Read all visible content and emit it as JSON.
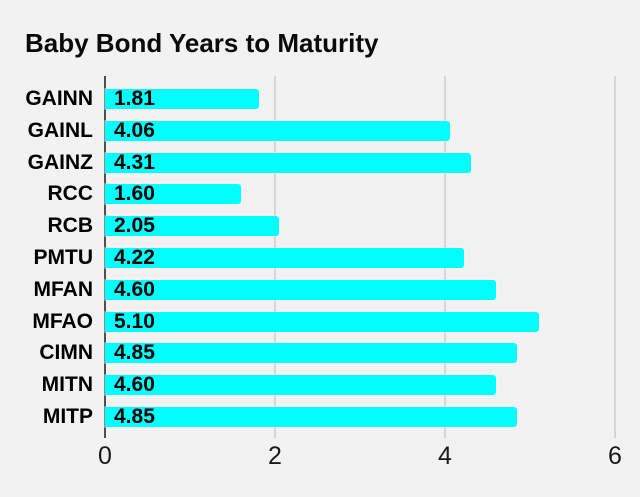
{
  "title": "Baby Bond Years to Maturity",
  "chart_data": {
    "type": "bar",
    "orientation": "horizontal",
    "title": "Baby Bond Years to Maturity",
    "categories": [
      "GAINN",
      "GAINL",
      "GAINZ",
      "RCC",
      "RCB",
      "PMTU",
      "MFAN",
      "MFAO",
      "CIMN",
      "MITN",
      "MITP"
    ],
    "values": [
      1.81,
      4.06,
      4.31,
      1.6,
      2.05,
      4.22,
      4.6,
      5.1,
      4.85,
      4.6,
      4.85
    ],
    "value_labels": [
      "1.81",
      "4.06",
      "4.31",
      "1.60",
      "2.05",
      "4.22",
      "4.60",
      "5.10",
      "4.85",
      "4.60",
      "4.85"
    ],
    "xlabel": "",
    "ylabel": "",
    "xlim": [
      0,
      6
    ],
    "x_ticks": [
      0,
      2,
      4,
      6
    ],
    "x_tick_labels": [
      "0",
      "2",
      "4",
      "6"
    ],
    "grid": "vertical gridlines at x ticks",
    "legend": false,
    "value_label_position": "inside-left",
    "colors": {
      "bar": "#00ffff",
      "background": "#f2f2f2",
      "axis_line": "#4f4f4f",
      "gridline": "#d6d6d6",
      "text": "#000000"
    }
  }
}
